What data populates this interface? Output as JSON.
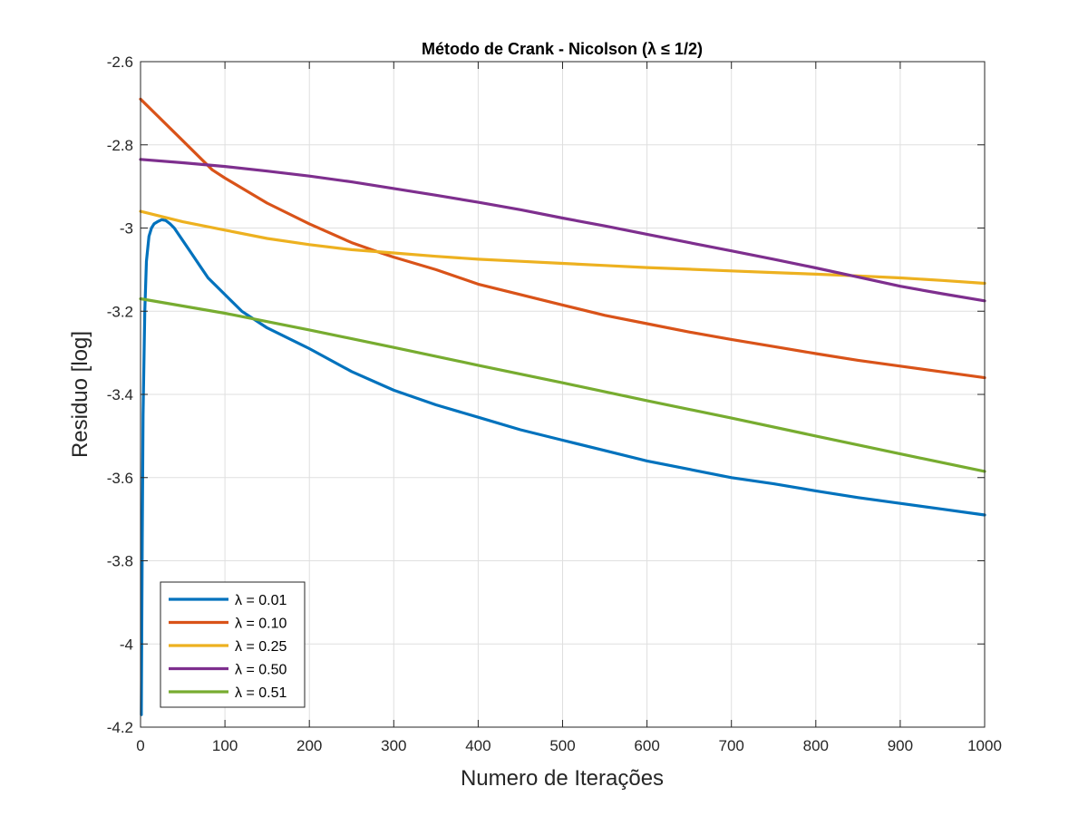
{
  "chart_data": {
    "type": "line",
    "title": "Método de Crank - Nicolson (λ ≤ 1/2)",
    "xlabel": "Numero de Iterações",
    "ylabel": "Residuo [log]",
    "xlim": [
      0,
      1000
    ],
    "ylim": [
      -4.2,
      -2.6
    ],
    "xticks": [
      0,
      100,
      200,
      300,
      400,
      500,
      600,
      700,
      800,
      900,
      1000
    ],
    "xtick_labels": [
      "0",
      "100",
      "200",
      "300",
      "400",
      "500",
      "600",
      "700",
      "800",
      "900",
      "1000"
    ],
    "yticks": [
      -4.2,
      -4.0,
      -3.8,
      -3.6,
      -3.4,
      -3.2,
      -3.0,
      -2.8,
      -2.6
    ],
    "ytick_labels": [
      "-4.2",
      "-4",
      "-3.8",
      "-3.6",
      "-3.4",
      "-3.2",
      "-3",
      "-2.8",
      "-2.6"
    ],
    "grid": true,
    "legend_position": "bottom-left",
    "series": [
      {
        "name": "λ = 0.01",
        "color": "#0072BD",
        "x": [
          1,
          2,
          3,
          5,
          7,
          10,
          13,
          16,
          20,
          25,
          30,
          35,
          40,
          50,
          60,
          70,
          80,
          100,
          120,
          150,
          200,
          250,
          300,
          350,
          400,
          450,
          500,
          550,
          600,
          650,
          700,
          750,
          800,
          850,
          900,
          950,
          1000
        ],
        "y": [
          -4.17,
          -3.75,
          -3.45,
          -3.2,
          -3.08,
          -3.02,
          -3.0,
          -2.99,
          -2.985,
          -2.98,
          -2.982,
          -2.99,
          -3.0,
          -3.03,
          -3.06,
          -3.09,
          -3.12,
          -3.16,
          -3.2,
          -3.24,
          -3.29,
          -3.345,
          -3.39,
          -3.425,
          -3.455,
          -3.485,
          -3.51,
          -3.535,
          -3.56,
          -3.58,
          -3.6,
          -3.615,
          -3.632,
          -3.648,
          -3.662,
          -3.676,
          -3.69
        ]
      },
      {
        "name": "λ = 0.10",
        "color": "#D95319",
        "x": [
          0,
          20,
          50,
          85,
          100,
          150,
          200,
          250,
          285,
          300,
          350,
          400,
          450,
          500,
          550,
          600,
          650,
          700,
          750,
          800,
          850,
          900,
          950,
          1000
        ],
        "y": [
          -2.69,
          -2.73,
          -2.79,
          -2.86,
          -2.88,
          -2.94,
          -2.99,
          -3.035,
          -3.06,
          -3.07,
          -3.1,
          -3.135,
          -3.16,
          -3.185,
          -3.21,
          -3.23,
          -3.25,
          -3.268,
          -3.285,
          -3.302,
          -3.318,
          -3.332,
          -3.346,
          -3.36
        ]
      },
      {
        "name": "λ = 0.25",
        "color": "#EDB120",
        "x": [
          0,
          50,
          100,
          150,
          200,
          250,
          300,
          350,
          400,
          450,
          500,
          550,
          600,
          650,
          700,
          750,
          800,
          850,
          900,
          950,
          1000
        ],
        "y": [
          -2.96,
          -2.985,
          -3.005,
          -3.025,
          -3.04,
          -3.052,
          -3.06,
          -3.068,
          -3.075,
          -3.08,
          -3.085,
          -3.09,
          -3.095,
          -3.099,
          -3.103,
          -3.107,
          -3.111,
          -3.115,
          -3.12,
          -3.126,
          -3.133
        ]
      },
      {
        "name": "λ = 0.50",
        "color": "#7E2F8E",
        "x": [
          0,
          50,
          100,
          150,
          200,
          250,
          300,
          350,
          400,
          450,
          500,
          550,
          600,
          650,
          700,
          750,
          800,
          850,
          900,
          950,
          1000
        ],
        "y": [
          -2.835,
          -2.843,
          -2.852,
          -2.863,
          -2.875,
          -2.889,
          -2.905,
          -2.921,
          -2.938,
          -2.956,
          -2.976,
          -2.995,
          -3.015,
          -3.035,
          -3.055,
          -3.075,
          -3.096,
          -3.118,
          -3.14,
          -3.158,
          -3.175
        ]
      },
      {
        "name": "λ = 0.51",
        "color": "#77AC30",
        "x": [
          0,
          100,
          200,
          300,
          400,
          500,
          600,
          700,
          800,
          900,
          1000
        ],
        "y": [
          -3.17,
          -3.205,
          -3.245,
          -3.287,
          -3.33,
          -3.372,
          -3.415,
          -3.457,
          -3.5,
          -3.543,
          -3.585
        ]
      }
    ]
  }
}
